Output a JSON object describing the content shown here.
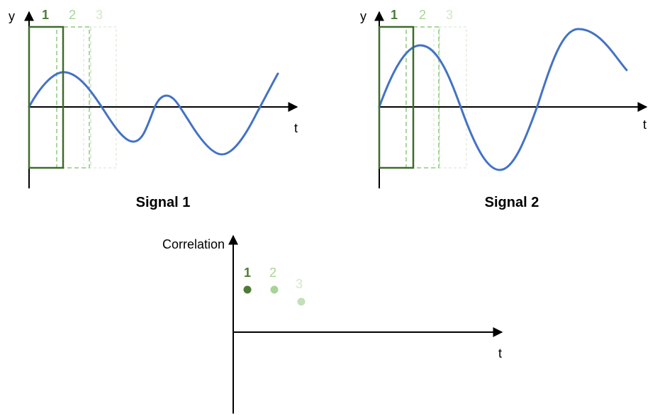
{
  "signal1": {
    "title": "Signal 1",
    "y_label": "y",
    "t_label": "t"
  },
  "signal2": {
    "title": "Signal 2",
    "y_label": "y",
    "t_label": "t"
  },
  "correlation": {
    "y_label": "Correlation",
    "t_label": "t"
  },
  "windows": [
    {
      "label": "1",
      "color": "#3F6B2A"
    },
    {
      "label": "2",
      "color": "#8FC87A"
    },
    {
      "label": "3",
      "color": "#D4E6CC"
    }
  ],
  "correlation_points": [
    {
      "label": "1",
      "color": "#4E7A37"
    },
    {
      "label": "2",
      "color": "#A6D496"
    },
    {
      "label": "3",
      "color": "#C3E0B8"
    }
  ],
  "colors": {
    "curve": "#4472C4",
    "axis": "#000000"
  }
}
